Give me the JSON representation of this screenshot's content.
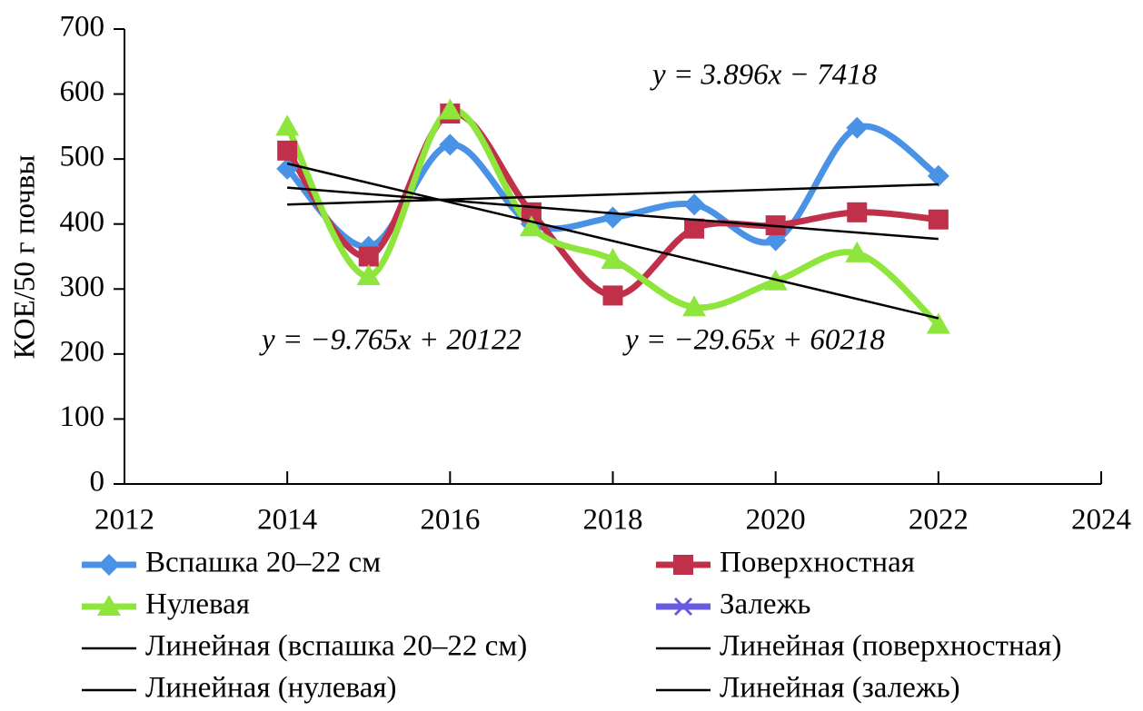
{
  "chart_data": {
    "type": "line",
    "y_label": "КОЕ/50 г почвы",
    "x": [
      2014,
      2015,
      2016,
      2017,
      2018,
      2019,
      2020,
      2021,
      2022
    ],
    "series": [
      {
        "name": "Вспашка 20–22 см",
        "color": "#4a92e6",
        "marker": "diamond",
        "values": [
          485,
          365,
          522,
          400,
          410,
          430,
          375,
          548,
          474
        ]
      },
      {
        "name": "Поверхностная",
        "color": "#c0304b",
        "marker": "square",
        "values": [
          513,
          350,
          570,
          418,
          290,
          393,
          398,
          418,
          407
        ]
      },
      {
        "name": "Нулевая",
        "color": "#8ee63c",
        "marker": "triangle",
        "values": [
          550,
          320,
          575,
          395,
          345,
          272,
          312,
          355,
          245
        ]
      },
      {
        "name": "Залежь",
        "color": "#6a5ae0",
        "marker": "x",
        "values": [
          null,
          null,
          null,
          null,
          null,
          null,
          null,
          null,
          null
        ]
      }
    ],
    "trendlines": [
      {
        "name": "Линейная (вспашка 20–22 см)",
        "color": "#000000",
        "x": [
          2014,
          2022
        ],
        "values": [
          430,
          461
        ]
      },
      {
        "name": "Линейная (поверхностная)",
        "color": "#000000",
        "x": [
          2014,
          2022
        ],
        "values": [
          456,
          377
        ]
      },
      {
        "name": "Линейная (нулевая)",
        "color": "#000000",
        "x": [
          2014,
          2022
        ],
        "values": [
          493,
          255
        ]
      },
      {
        "name": "Линейная (залежь)",
        "color": "#000000",
        "x": [
          2014,
          2022
        ],
        "values": [
          null,
          null
        ]
      }
    ],
    "annotations": [
      "y = 3.896x − 7418",
      "y = −9.765x + 20122",
      "y = −29.65x + 60218"
    ],
    "xlim": [
      2012,
      2024
    ],
    "xticks": [
      2012,
      2014,
      2016,
      2018,
      2020,
      2022,
      2024
    ],
    "ylim": [
      0,
      700
    ],
    "yticks": [
      0,
      100,
      200,
      300,
      400,
      500,
      600,
      700
    ],
    "grid": false,
    "smooth": true
  }
}
